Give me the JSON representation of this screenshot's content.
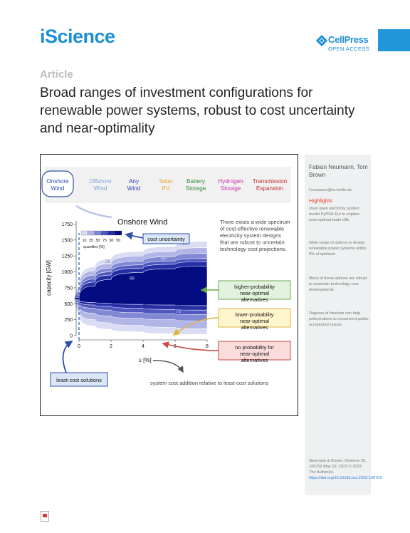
{
  "header": {
    "journal": "iScience",
    "publisher": "CellPress",
    "publisher_sub": "OPEN ACCESS"
  },
  "article": {
    "type": "Article",
    "title": "Broad ranges of investment configurations for renewable power systems, robust to cost uncertainty and near-optimality"
  },
  "graphical_abstract": {
    "legend_items": [
      "Onshore Wind",
      "Offshore Wind",
      "Any Wind",
      "Solar PV",
      "Battery Storage",
      "Hydrogen Storage",
      "Transmission Expansion"
    ],
    "legend_colors": [
      "#2a4bb0",
      "#7fa6e0",
      "#2d3fb3",
      "#e8a21f",
      "#2e8b3a",
      "#c935a8",
      "#c0292b"
    ],
    "selected_legend": "Onshore Wind",
    "panel_title": "Onshore Wind",
    "cost_uncertainty_label": "cost uncertainty",
    "least_cost_label": "least-cost solutions",
    "cost_axis_caption": "system cost addition relative to least-cost solutions",
    "intro_text": "There exists a wide spectrum of cost-effective renewable electricity system designs that are robust to uncertain technology cost projections.",
    "boxes": [
      {
        "label": "higher-probability near-optimal alternatives",
        "fill": "#e3f2dc",
        "stroke": "#6aa84f"
      },
      {
        "label": "lower-probability near-optimal alternatives",
        "fill": "#fff5cc",
        "stroke": "#e0b43c"
      },
      {
        "label": "no probability for near-optimal alternatives",
        "fill": "#fbdcdc",
        "stroke": "#c94a4a"
      }
    ]
  },
  "chart_data": {
    "type": "area",
    "title": "Onshore Wind",
    "xlabel": "ε [%]",
    "ylabel": "capacity [GW]",
    "x_ticks": [
      "0",
      "2",
      "4",
      "6",
      "8"
    ],
    "y_ticks": [
      "0",
      "250",
      "500",
      "750",
      "1000",
      "1250",
      "1500",
      "1750"
    ],
    "xlim": [
      0,
      8
    ],
    "ylim": [
      0,
      1800
    ],
    "legend_title": "quantiles [%]",
    "quantiles": [
      "10",
      "25",
      "50",
      "75",
      "90",
      "99"
    ],
    "quantile_colors": [
      "#d9dcf3",
      "#b1b6e6",
      "#8189d4",
      "#5058bf",
      "#262fa6",
      "#040c82"
    ],
    "contour_labels": [
      "10",
      "25",
      "50",
      "75",
      "90",
      "99"
    ],
    "bands": [
      {
        "quantile": "10",
        "x": [
          0,
          1,
          2,
          4,
          6,
          8
        ],
        "min": [
          330,
          150,
          100,
          60,
          30,
          20
        ],
        "max": [
          800,
          1080,
          1200,
          1320,
          1400,
          1480
        ]
      },
      {
        "quantile": "25",
        "x": [
          0,
          1,
          2,
          4,
          6,
          8
        ],
        "min": [
          400,
          250,
          200,
          160,
          130,
          110
        ],
        "max": [
          760,
          1020,
          1130,
          1250,
          1320,
          1380
        ]
      },
      {
        "quantile": "50",
        "x": [
          0,
          1,
          2,
          4,
          6,
          8
        ],
        "min": [
          460,
          350,
          310,
          270,
          250,
          230
        ],
        "max": [
          700,
          950,
          1060,
          1170,
          1240,
          1290
        ]
      },
      {
        "quantile": "75",
        "x": [
          0,
          1,
          2,
          4,
          6,
          8
        ],
        "min": [
          510,
          430,
          400,
          360,
          340,
          330
        ],
        "max": [
          660,
          890,
          1000,
          1110,
          1170,
          1210
        ]
      },
      {
        "quantile": "90",
        "x": [
          0,
          1,
          2,
          4,
          6,
          8
        ],
        "min": [
          540,
          480,
          460,
          430,
          410,
          400
        ],
        "max": [
          630,
          840,
          950,
          1060,
          1120,
          1160
        ]
      },
      {
        "quantile": "99",
        "x": [
          0,
          1,
          2,
          4,
          6,
          8
        ],
        "min": [
          560,
          520,
          510,
          490,
          480,
          470
        ],
        "max": [
          600,
          780,
          880,
          990,
          1050,
          1090
        ]
      }
    ]
  },
  "sidebar": {
    "authors": "Fabian Neumann, Tom Brown",
    "email": "f.neumann@tu-berlin.de",
    "highlights_title": "Highlights",
    "highlights": [
      "Uses open electricity system model PyPSA-Eur to explore near-optimal trade-offs",
      "Wide range of options to design renewable power systems within 8% of optimum",
      "Many of these options are robust to uncertain technology cost developments",
      "Degrees of freedom can help policymakers to circumvent public acceptance issues"
    ],
    "citation": "Neumann & Brown, iScience 26, 106702 May 19, 2023 © 2023 The Author(s).",
    "doi": "https://doi.org/10.1016/j.isci.2023.106702"
  }
}
